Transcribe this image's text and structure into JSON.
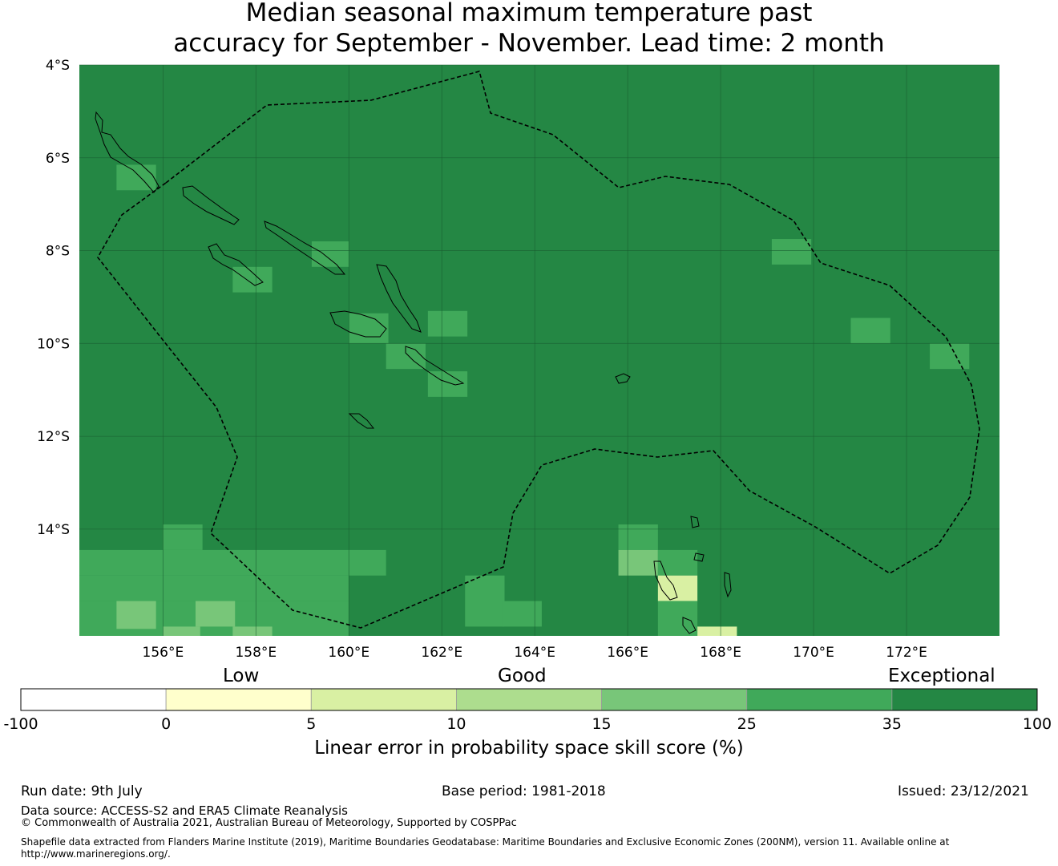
{
  "title": {
    "line1": "Median seasonal maximum temperature past",
    "line2": "accuracy for September - November. Lead time: 2 month"
  },
  "map": {
    "lat_labels": [
      "4°S",
      "6°S",
      "8°S",
      "10°S",
      "12°S",
      "14°S"
    ],
    "lat_values": [
      -4,
      -6,
      -8,
      -10,
      -12,
      -14
    ],
    "lon_labels": [
      "156°E",
      "158°E",
      "160°E",
      "162°E",
      "164°E",
      "166°E",
      "168°E",
      "170°E",
      "172°E"
    ],
    "lon_values": [
      156,
      158,
      160,
      162,
      164,
      166,
      168,
      170,
      172
    ],
    "lon_range": [
      154.2,
      174.0
    ],
    "lat_range": [
      -4.0,
      -16.3
    ],
    "background_score_band": "35 to 100",
    "background_color": "#248744",
    "cells": [
      {
        "lon": 155.0,
        "lat": -6.15,
        "w": 0.85,
        "h": 0.55,
        "color": "#40a95a"
      },
      {
        "lon": 159.2,
        "lat": -7.8,
        "w": 0.8,
        "h": 0.55,
        "color": "#40a95a"
      },
      {
        "lon": 157.5,
        "lat": -8.35,
        "w": 0.85,
        "h": 0.55,
        "color": "#40a95a"
      },
      {
        "lon": 161.7,
        "lat": -9.3,
        "w": 0.85,
        "h": 0.55,
        "color": "#40a95a"
      },
      {
        "lon": 160.0,
        "lat": -9.35,
        "w": 0.85,
        "h": 0.65,
        "color": "#40a95a"
      },
      {
        "lon": 160.8,
        "lat": -10.0,
        "w": 0.85,
        "h": 0.55,
        "color": "#40a95a"
      },
      {
        "lon": 161.7,
        "lat": -10.6,
        "w": 0.85,
        "h": 0.55,
        "color": "#40a95a"
      },
      {
        "lon": 169.1,
        "lat": -7.75,
        "w": 0.85,
        "h": 0.55,
        "color": "#40a95a"
      },
      {
        "lon": 170.8,
        "lat": -9.45,
        "w": 0.85,
        "h": 0.55,
        "color": "#40a95a"
      },
      {
        "lon": 172.5,
        "lat": -10.0,
        "w": 0.85,
        "h": 0.55,
        "color": "#40a95a"
      },
      {
        "lon": 156.0,
        "lat": -13.9,
        "w": 0.85,
        "h": 0.55,
        "color": "#40a95a"
      },
      {
        "lon": 154.2,
        "lat": -14.45,
        "w": 6.6,
        "h": 0.55,
        "color": "#40a95a"
      },
      {
        "lon": 154.2,
        "lat": -15.0,
        "w": 5.8,
        "h": 0.55,
        "color": "#40a95a"
      },
      {
        "lon": 154.2,
        "lat": -15.55,
        "w": 5.8,
        "h": 0.75,
        "color": "#40a95a"
      },
      {
        "lon": 155.0,
        "lat": -15.55,
        "w": 0.85,
        "h": 0.6,
        "color": "#78c679"
      },
      {
        "lon": 156.7,
        "lat": -15.55,
        "w": 0.85,
        "h": 0.55,
        "color": "#78c679"
      },
      {
        "lon": 156.0,
        "lat": -16.1,
        "w": 0.8,
        "h": 0.2,
        "color": "#78c679"
      },
      {
        "lon": 157.5,
        "lat": -16.1,
        "w": 0.85,
        "h": 0.2,
        "color": "#78c679"
      },
      {
        "lon": 162.5,
        "lat": -15.0,
        "w": 0.85,
        "h": 1.1,
        "color": "#40a95a"
      },
      {
        "lon": 163.3,
        "lat": -15.55,
        "w": 0.85,
        "h": 0.55,
        "color": "#40a95a"
      },
      {
        "lon": 165.8,
        "lat": -13.9,
        "w": 0.85,
        "h": 0.55,
        "color": "#40a95a"
      },
      {
        "lon": 165.8,
        "lat": -14.45,
        "w": 0.85,
        "h": 0.55,
        "color": "#78c679"
      },
      {
        "lon": 166.65,
        "lat": -14.45,
        "w": 0.85,
        "h": 0.55,
        "color": "#40a95a"
      },
      {
        "lon": 166.65,
        "lat": -15.0,
        "w": 0.85,
        "h": 0.55,
        "color": "#d9f0a3"
      },
      {
        "lon": 166.65,
        "lat": -15.55,
        "w": 0.85,
        "h": 0.75,
        "color": "#40a95a"
      },
      {
        "lon": 167.5,
        "lat": -16.1,
        "w": 0.85,
        "h": 0.2,
        "color": "#d9f0a3"
      }
    ]
  },
  "legend": {
    "categories": [
      "Low",
      "Good",
      "Exceptional"
    ],
    "boundaries": [
      "-100",
      "0",
      "5",
      "10",
      "15",
      "25",
      "35",
      "100"
    ],
    "colors": [
      "#ffffff",
      "#ffffcc",
      "#d9f0a3",
      "#addd8e",
      "#78c679",
      "#40a95a",
      "#248744"
    ],
    "label": "Linear error in probability space skill score (%)"
  },
  "footer": {
    "run_date": "Run date: 9th July",
    "base_period": "Base period: 1981-2018",
    "issued": "Issued: 23/12/2021",
    "data_source": "Data source: ACCESS-S2 and ERA5 Climate Reanalysis",
    "copyright": "© Commonwealth of Australia 2021, Australian Bureau of Meteorology, Supported by COSPPac",
    "shapefile_line1": "Shapefile data extracted from Flanders Marine Institute (2019), Maritime Boundaries Geodatabase: Maritime Boundaries and Exclusive Economic Zones (200NM), version 11. Available online at",
    "shapefile_line2": "http://www.marineregions.org/."
  }
}
